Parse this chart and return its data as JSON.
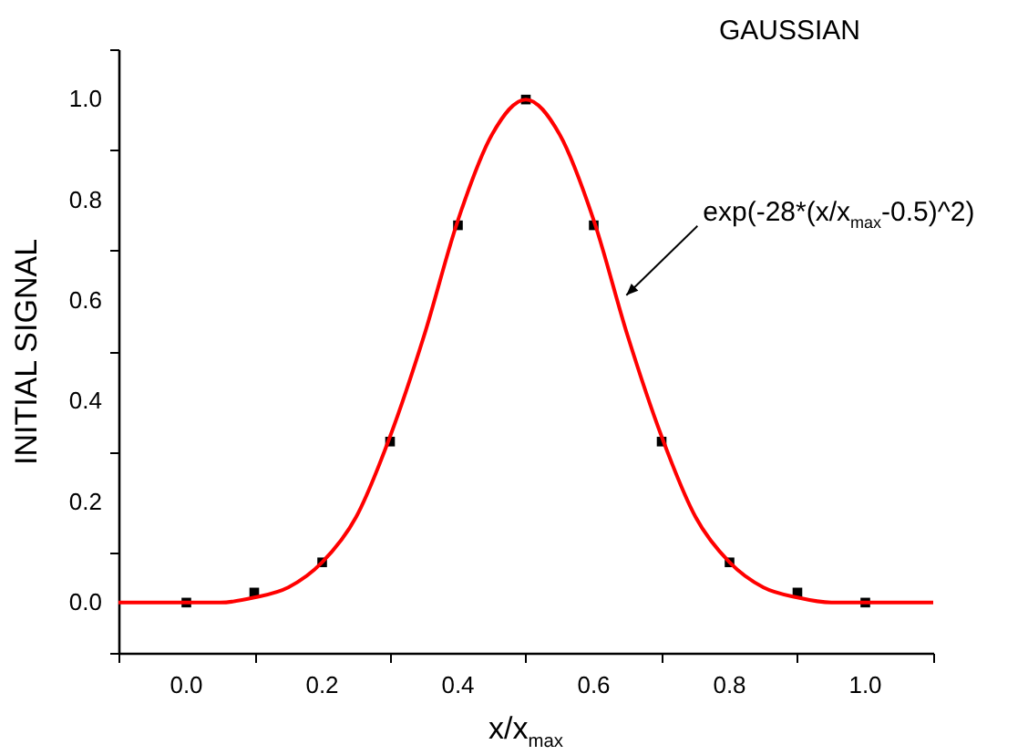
{
  "chart_data": {
    "type": "line",
    "title": "GAUSSIAN",
    "xlabel": "x/x$_{max}$",
    "ylabel": "INITIAL SIGNAL",
    "xlim": [
      -0.1,
      1.1
    ],
    "ylim": [
      -0.1,
      1.1
    ],
    "xticks": [
      {
        "value": -0.1,
        "label": null
      },
      {
        "value": 0,
        "label": "0.0"
      },
      {
        "value": 0.1,
        "label": null
      },
      {
        "value": 0.2,
        "label": "0.2"
      },
      {
        "value": 0.3,
        "label": null
      },
      {
        "value": 0.4,
        "label": "0.4"
      },
      {
        "value": 0.5,
        "label": null
      },
      {
        "value": 0.6,
        "label": "0.6"
      },
      {
        "value": 0.7,
        "label": null
      },
      {
        "value": 0.8,
        "label": "0.8"
      },
      {
        "value": 0.9,
        "label": null
      },
      {
        "value": 1,
        "label": "1.0"
      },
      {
        "value": 1.1,
        "label": null
      }
    ],
    "yticks": [
      {
        "value": -0.1,
        "label": null
      },
      {
        "value": 0,
        "label": "0.0"
      },
      {
        "value": 0.1,
        "label": null
      },
      {
        "value": 0.2,
        "label": "0.2"
      },
      {
        "value": 0.3,
        "label": null
      },
      {
        "value": 0.4,
        "label": "0.4"
      },
      {
        "value": 0.5,
        "label": null
      },
      {
        "value": 0.6,
        "label": "0.6"
      },
      {
        "value": 0.7,
        "label": null
      },
      {
        "value": 0.8,
        "label": "0.8"
      },
      {
        "value": 0.9,
        "label": null
      },
      {
        "value": 1,
        "label": "1.0"
      },
      {
        "value": 1.1,
        "label": null
      }
    ],
    "grid": false,
    "series": [
      {
        "type": "scatter",
        "marker": "square",
        "color": "#000000",
        "x": [
          0,
          0.1,
          0.2,
          0.3,
          0.4,
          0.5,
          0.6,
          0.7,
          0.8,
          0.9,
          1.0
        ],
        "values": [
          0.0,
          0.02,
          0.08,
          0.32,
          0.75,
          1.0,
          0.75,
          0.32,
          0.08,
          0.02,
          0.0
        ]
      },
      {
        "type": "line",
        "line_style": "solid",
        "color": "#ff0000",
        "x": [
          -0.1,
          -0.05,
          0,
          0.05,
          0.1,
          0.15,
          0.2,
          0.25,
          0.3,
          0.35,
          0.4,
          0.45,
          0.5,
          0.55,
          0.6,
          0.65,
          0.7,
          0.75,
          0.8,
          0.85,
          0.9,
          0.95,
          1.0,
          1.05,
          1.1
        ],
        "values": [
          0.0,
          0.0,
          0.0,
          0.0,
          0.01,
          0.03,
          0.08,
          0.17,
          0.33,
          0.53,
          0.76,
          0.93,
          1.0,
          0.93,
          0.76,
          0.53,
          0.33,
          0.17,
          0.08,
          0.03,
          0.01,
          0.0,
          0.0,
          0.0,
          0.0
        ]
      }
    ],
    "annotations": [
      {
        "text": "exp(-28*(x/x$_{max}$-0.5)^2)",
        "x": 0.64,
        "y": 0.6
      }
    ]
  }
}
